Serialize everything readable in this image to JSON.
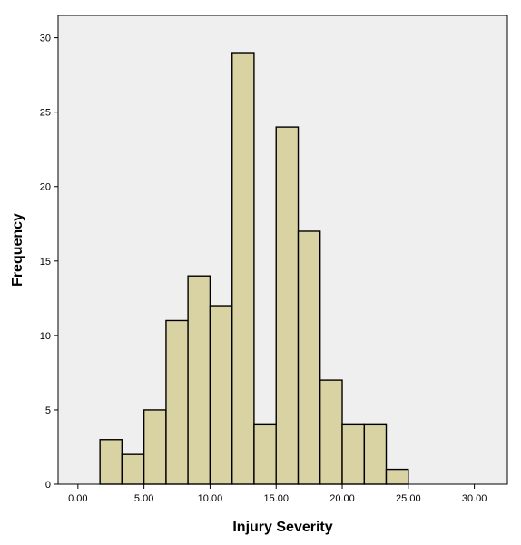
{
  "chart_data": {
    "type": "bar",
    "title": "",
    "xlabel": "Injury Severity",
    "ylabel": "Frequency",
    "xlim": [
      -1.5,
      32.5
    ],
    "ylim": [
      0,
      31.5
    ],
    "x_ticks": [
      0,
      5,
      10,
      15,
      20,
      25,
      30
    ],
    "x_tick_labels": [
      "0.00",
      "5.00",
      "10.00",
      "15.00",
      "20.00",
      "25.00",
      "30.00"
    ],
    "y_ticks": [
      0,
      5,
      10,
      15,
      20,
      25,
      30
    ],
    "y_tick_labels": [
      "0",
      "5",
      "10",
      "15",
      "20",
      "25",
      "30"
    ],
    "bin_edges": [
      1.67,
      3.33,
      5.0,
      6.67,
      8.33,
      10.0,
      11.67,
      13.33,
      15.0,
      16.67,
      18.33,
      20.0,
      21.67,
      23.33,
      25.0
    ],
    "values": [
      3,
      2,
      5,
      11,
      14,
      12,
      29,
      4,
      24,
      17,
      7,
      4,
      4,
      1
    ],
    "grid": false,
    "legend": "none",
    "colors": {
      "plot_background": "#efefef",
      "bar_fill": "#d9d2a2",
      "bar_stroke": "#000000",
      "axis": "#000000"
    }
  }
}
